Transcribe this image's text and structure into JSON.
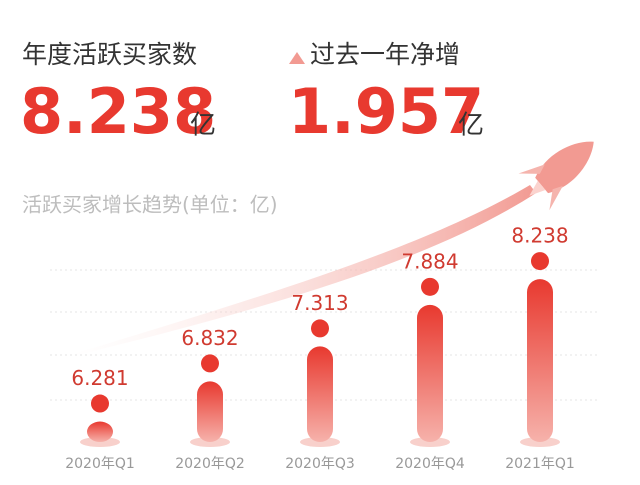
{
  "stats": [
    {
      "label": "年度活跃买家数",
      "value": "8.238",
      "unit": "亿"
    },
    {
      "label": "过去一年净增",
      "value": "1.957",
      "unit": "亿"
    }
  ],
  "chart_data": {
    "type": "bar",
    "title": "活跃买家增长趋势(单位：亿)",
    "categories": [
      "2020年Q1",
      "2020年Q2",
      "2020年Q3",
      "2020年Q4",
      "2021年Q1"
    ],
    "values": [
      6.281,
      6.832,
      7.313,
      7.884,
      8.238
    ],
    "color": "#e8392f",
    "ylim": [
      6,
      8.5
    ]
  }
}
